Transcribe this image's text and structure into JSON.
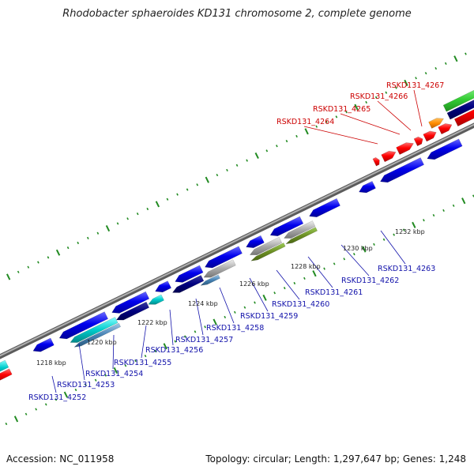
{
  "title": "Rhodobacter sphaeroides KD131 chromosome 2, complete genome",
  "footer": {
    "accession": "Accession: NC_011958",
    "summary": "Topology: circular; Length: 1,297,647 bp; Genes: 1,248"
  },
  "kbp_ticks": [
    {
      "label": "1218 kbp"
    },
    {
      "label": "1220 kbp"
    },
    {
      "label": "1222 kbp"
    },
    {
      "label": "1224 kbp"
    },
    {
      "label": "1226 kbp"
    },
    {
      "label": "1228 kbp"
    },
    {
      "label": "1230 kbp"
    },
    {
      "label": "1232 kbp"
    }
  ],
  "genes_forward": [
    "RSKD131_4264",
    "RSKD131_4265",
    "RSKD131_4266",
    "RSKD131_4267"
  ],
  "genes_reverse": [
    "RSKD131_4252",
    "RSKD131_4253",
    "RSKD131_4254",
    "RSKD131_4255",
    "RSKD131_4256",
    "RSKD131_4257",
    "RSKD131_4258",
    "RSKD131_4259",
    "RSKD131_4260",
    "RSKD131_4261",
    "RSKD131_4262",
    "RSKD131_4263"
  ],
  "colors": {
    "forward_gene": "#ff0000",
    "reverse_gene": "#0000ee",
    "navy_gene": "#000080",
    "cyan_gene": "#00cccc",
    "gray_gene": "#aaaaaa",
    "olive_gene": "#6b8e23",
    "orange_gene": "#ff8c00",
    "green_gene": "#33cc33",
    "backbone": "#888888",
    "tick": "#228b22"
  }
}
